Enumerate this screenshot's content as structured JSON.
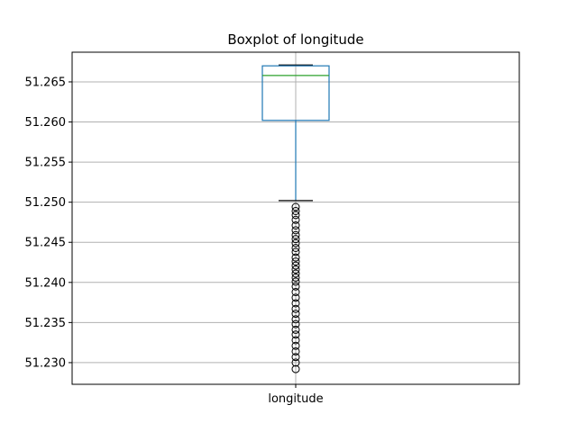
{
  "chart_data": {
    "type": "boxplot",
    "title": "Boxplot of longitude",
    "categories": [
      "longitude"
    ],
    "xlabel": "",
    "ylabel": "",
    "ylim": [
      51.2273,
      51.2687
    ],
    "yticks": [
      51.23,
      51.235,
      51.24,
      51.245,
      51.25,
      51.255,
      51.26,
      51.265
    ],
    "ytick_labels": [
      "51.230",
      "51.235",
      "51.240",
      "51.245",
      "51.250",
      "51.255",
      "51.260",
      "51.265"
    ],
    "grid": true,
    "box": {
      "whisker_low": 51.2502,
      "q1": 51.2602,
      "median": 51.2658,
      "q3": 51.267,
      "whisker_high": 51.2671
    },
    "outliers": [
      51.2494,
      51.2489,
      51.2484,
      51.2478,
      51.2471,
      51.2465,
      51.2459,
      51.2454,
      51.2449,
      51.2443,
      51.2438,
      51.2431,
      51.2426,
      51.2421,
      51.2416,
      51.2411,
      51.2406,
      51.2401,
      51.2395,
      51.2388,
      51.2381,
      51.2374,
      51.2367,
      51.2361,
      51.2354,
      51.2348,
      51.2341,
      51.2335,
      51.2328,
      51.2321,
      51.2314,
      51.2307,
      51.23,
      51.2292
    ],
    "colors": {
      "box": "#1f77b4",
      "median": "#2ca02c",
      "caps": "#000000",
      "outlier_edge": "#000000",
      "grid": "#b0b0b0"
    }
  }
}
